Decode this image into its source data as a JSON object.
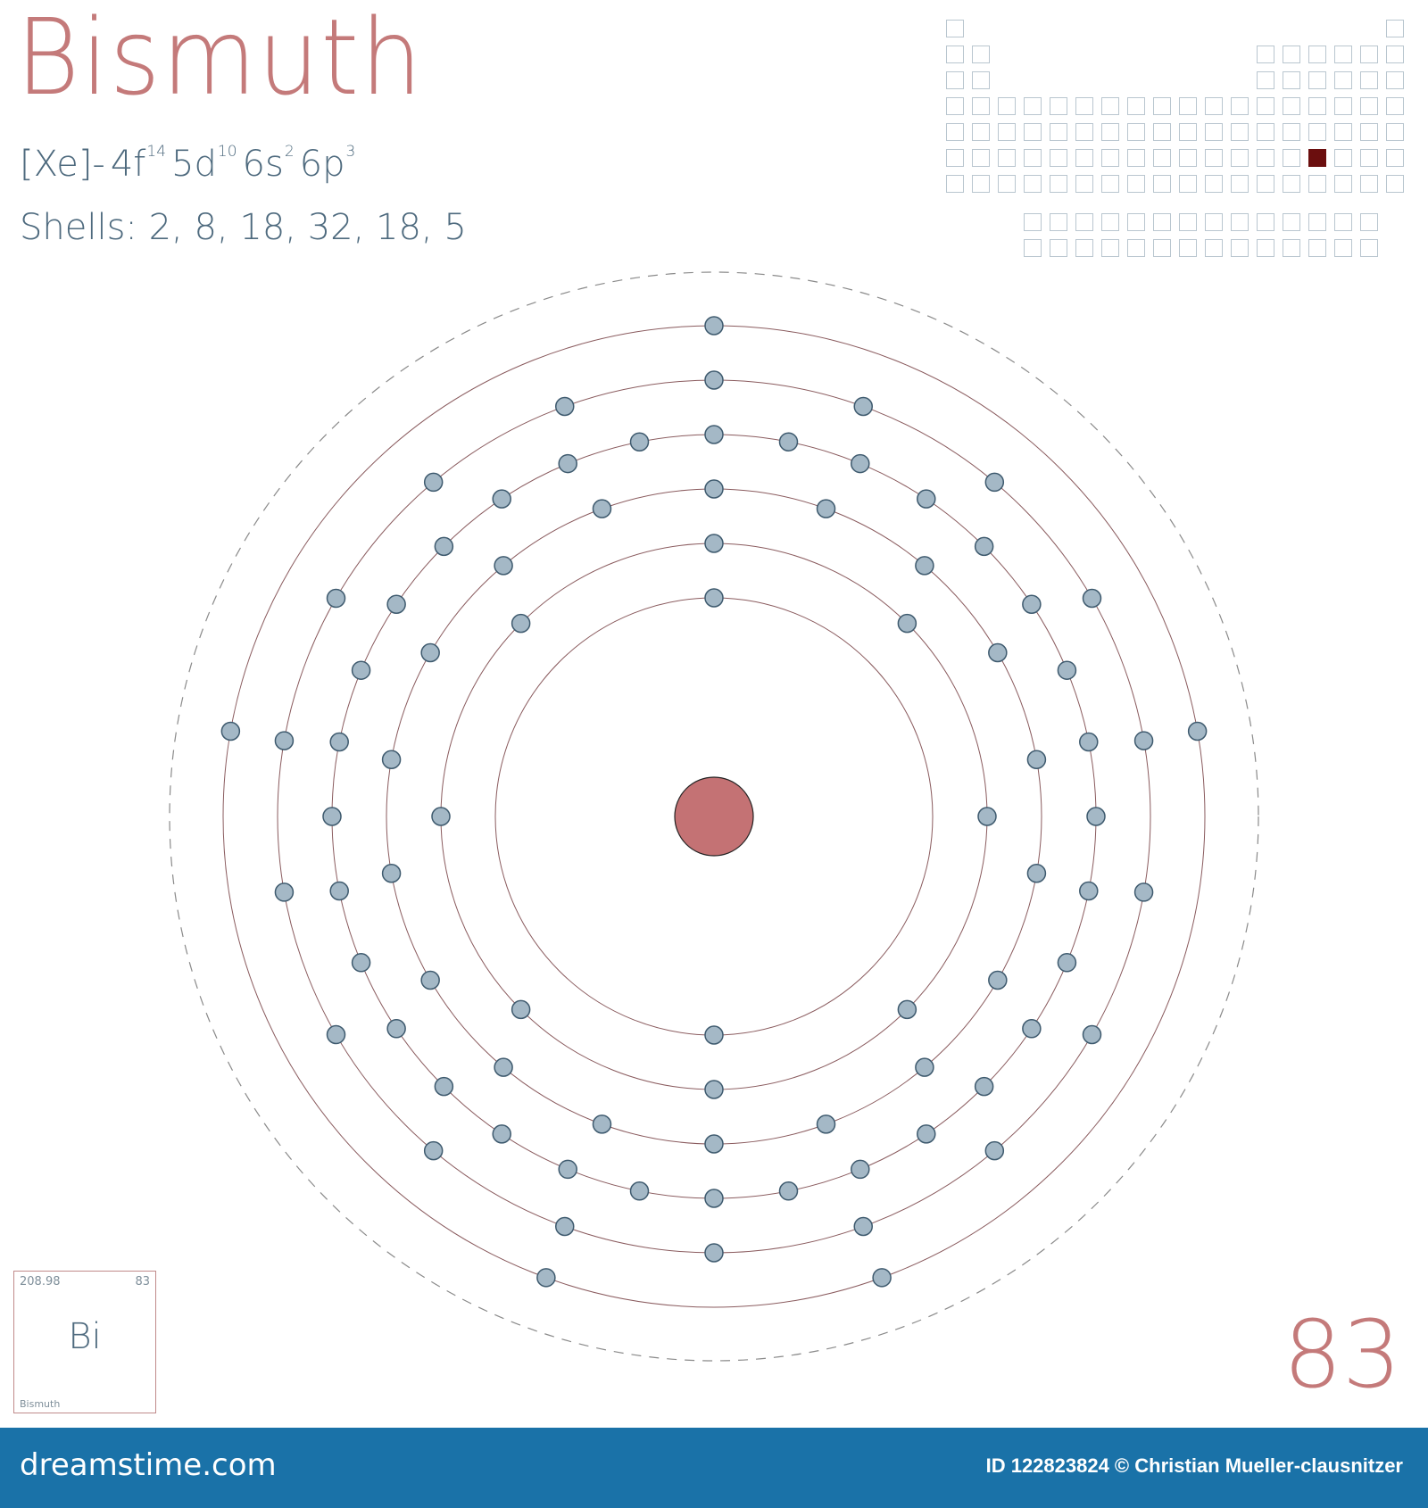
{
  "element": {
    "name": "Bismuth",
    "symbol": "Bi",
    "atomic_number": "83",
    "atomic_mass": "208.98",
    "config_prefix": "[Xe]-",
    "config_orbitals": [
      {
        "orbital": "4f",
        "electrons": "14"
      },
      {
        "orbital": "5d",
        "electrons": "10"
      },
      {
        "orbital": "6s",
        "electrons": "2"
      },
      {
        "orbital": "6p",
        "electrons": "3"
      }
    ],
    "shells_text": "Shells: 2, 8, 18, 32, 18, 5",
    "shells": [
      2,
      8,
      18,
      32,
      18,
      5
    ]
  },
  "periodic_table": {
    "highlight": {
      "period": 6,
      "group": 15
    },
    "cell_color": "#b9c6cf",
    "highlight_color": "#6b0e0e"
  },
  "colors": {
    "nucleus": "#c47274",
    "electron": "#a4b8c6",
    "electron_stroke": "#3e5a6e",
    "orbit": "#8a5b5e",
    "title": "#c47a7a",
    "text": "#4e6a7e",
    "footer": "#1a72a8"
  },
  "footer": {
    "logo": "dreamstime.com",
    "credit": "ID 122823824 © Christian Mueller-clausnitzer"
  }
}
